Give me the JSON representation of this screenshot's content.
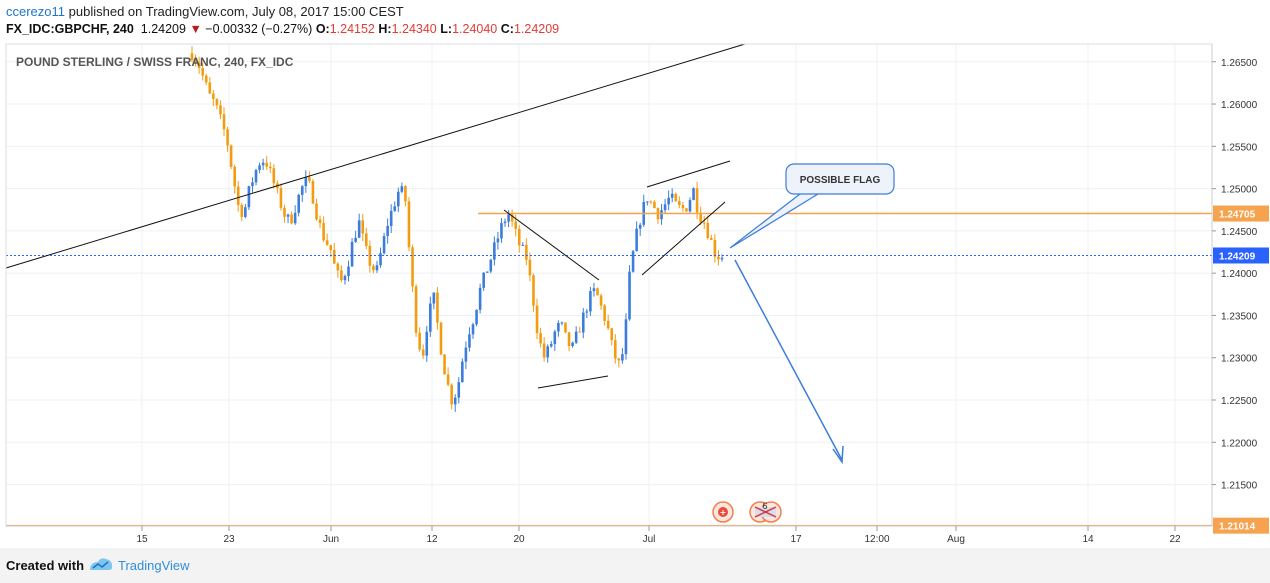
{
  "header": {
    "author": "ccerezo11",
    "published": "published on TradingView.com, July 08, 2017 15:00 CEST",
    "symbol": "FX_IDC:GBPCHF, 240",
    "last": "1.24209",
    "change_arrow": "▼",
    "change": "−0.00332 (−0.27%)",
    "o_label": "O:",
    "o": "1.24152",
    "h_label": "H:",
    "h": "1.24340",
    "l_label": "L:",
    "l": "1.24040",
    "c_label": "C:",
    "c": "1.24209"
  },
  "footer": {
    "created_with": "Created with",
    "brand": "TradingView"
  },
  "chart_data": {
    "type": "candlestick",
    "title": "POUND STERLING / SWISS FRANC, 240, FX_IDC",
    "ylim": [
      1.2101,
      1.2671
    ],
    "y_ticks": [
      "1.26500",
      "1.26000",
      "1.25500",
      "1.25000",
      "1.24500",
      "1.24000",
      "1.23500",
      "1.23000",
      "1.22500",
      "1.22000",
      "1.21500"
    ],
    "x_ticks": [
      "15",
      "23",
      "Jun",
      "12",
      "20",
      "Jul",
      "17",
      "12:00",
      "Aug",
      "14",
      "22"
    ],
    "last_price": "1.24209",
    "last_price_value": 1.24209,
    "horizontal_levels": [
      {
        "value": 1.24705,
        "label": "1.24705",
        "color": "#f5a34f"
      },
      {
        "value": 1.21014,
        "label": "1.21014",
        "color": "#f5a34f"
      }
    ],
    "colors": {
      "up": "#3c7ddb",
      "down": "#f39c12",
      "last_price_line": "#2962ff",
      "trend": "#111111",
      "arrow": "#3c7ddb"
    },
    "annotations": [
      {
        "text": "POSSIBLE FLAG"
      }
    ],
    "event_badge": "6",
    "close_series": [
      1.266,
      1.265,
      1.263,
      1.261,
      1.26,
      1.258,
      1.256,
      1.252,
      1.248,
      1.247,
      1.25,
      1.252,
      1.2535,
      1.253,
      1.251,
      1.249,
      1.247,
      1.246,
      1.248,
      1.25,
      1.251,
      1.249,
      1.246,
      1.244,
      1.243,
      1.24,
      1.239,
      1.241,
      1.244,
      1.246,
      1.243,
      1.241,
      1.24,
      1.243,
      1.246,
      1.248,
      1.25,
      1.249,
      1.24,
      1.233,
      1.23,
      1.235,
      1.237,
      1.232,
      1.228,
      1.225,
      1.226,
      1.23,
      1.233,
      1.235,
      1.238,
      1.24,
      1.242,
      1.244,
      1.246,
      1.247,
      1.245,
      1.243,
      1.242,
      1.238,
      1.233,
      1.23,
      1.231,
      1.233,
      1.234,
      1.232,
      1.231,
      1.233,
      1.235,
      1.237,
      1.238,
      1.236,
      1.234,
      1.231,
      1.229,
      1.231,
      1.24,
      1.244,
      1.247,
      1.249,
      1.248,
      1.247,
      1.248,
      1.249,
      1.248,
      1.2475,
      1.248,
      1.25,
      1.247,
      1.246,
      1.244,
      1.242,
      1.2421
    ]
  }
}
